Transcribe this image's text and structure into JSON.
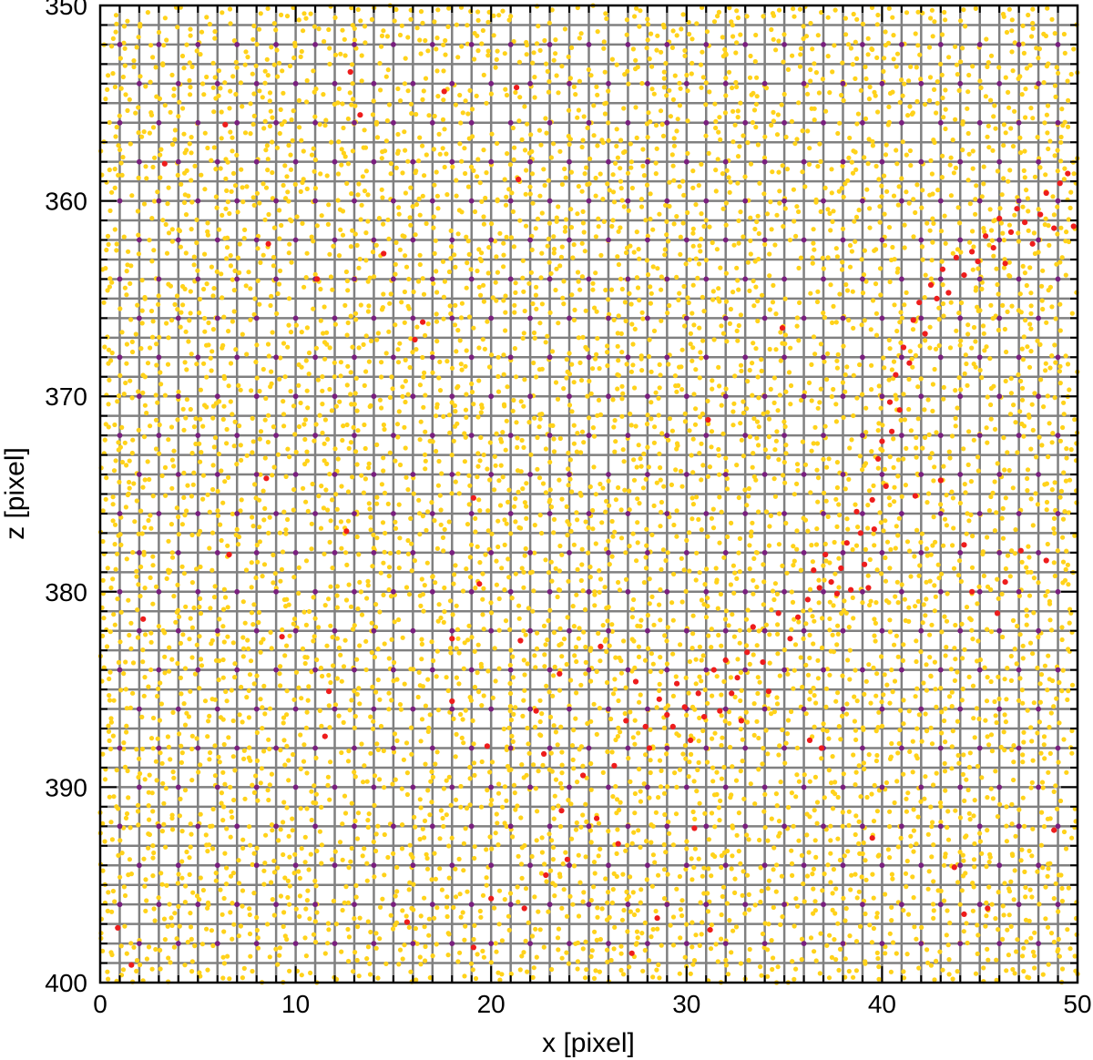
{
  "chart_data": {
    "type": "scatter",
    "title": "",
    "xlabel": "x [pixel]",
    "ylabel": "z [pixel]",
    "xlim": [
      0,
      50
    ],
    "ylim": [
      350,
      400
    ],
    "y_inverted": true,
    "grid": true,
    "grid_spacing": 1,
    "x_ticks": [
      0,
      10,
      20,
      30,
      40,
      50
    ],
    "y_ticks": [
      350,
      360,
      370,
      380,
      390,
      400
    ],
    "colors": {
      "grid": "#808080",
      "axes": "#000000",
      "yellow_points": "#ffd21a",
      "purple_points": "#7a1f7f",
      "red_points": "#ee1c1c"
    },
    "series": [
      {
        "color": "#7a1f7f",
        "description_from_image": "lattice of points at regular 2-pixel spacing with row offsets",
        "lattice": {
          "x_start": 1,
          "x_step": 2,
          "z_start": 352,
          "z_step": 2,
          "row_shift": 1
        }
      },
      {
        "color": "#ee1c1c",
        "points": [
          [
            0.9,
            397.2
          ],
          [
            1.6,
            399.1
          ],
          [
            2.2,
            381.4
          ],
          [
            3.3,
            358.1
          ],
          [
            6.4,
            356.1
          ],
          [
            6.6,
            378.1
          ],
          [
            8.5,
            374.2
          ],
          [
            8.6,
            362.2
          ],
          [
            9.3,
            382.3
          ],
          [
            11.1,
            364.0
          ],
          [
            11.7,
            385.1
          ],
          [
            11.5,
            387.4
          ],
          [
            12.6,
            376.9
          ],
          [
            12.8,
            353.4
          ],
          [
            13.3,
            355.6
          ],
          [
            14.5,
            362.7
          ],
          [
            16.1,
            367.1
          ],
          [
            16.5,
            366.2
          ],
          [
            17.6,
            354.4
          ],
          [
            18.0,
            382.4
          ],
          [
            18.0,
            385.6
          ],
          [
            19.1,
            375.2
          ],
          [
            19.4,
            379.6
          ],
          [
            19.8,
            387.9
          ],
          [
            21.3,
            354.2
          ],
          [
            21.4,
            358.9
          ],
          [
            21.5,
            382.5
          ],
          [
            22.3,
            386.1
          ],
          [
            22.7,
            388.3
          ],
          [
            23.5,
            384.2
          ],
          [
            23.6,
            391.2
          ],
          [
            23.9,
            393.7
          ],
          [
            24.7,
            389.4
          ],
          [
            25.4,
            391.6
          ],
          [
            25.6,
            382.8
          ],
          [
            26.3,
            388.9
          ],
          [
            26.5,
            392.9
          ],
          [
            26.9,
            386.6
          ],
          [
            27.4,
            384.6
          ],
          [
            27.9,
            386.9
          ],
          [
            28.1,
            388.0
          ],
          [
            28.6,
            385.5
          ],
          [
            29.0,
            386.3
          ],
          [
            29.3,
            386.9
          ],
          [
            29.5,
            384.7
          ],
          [
            29.9,
            385.9
          ],
          [
            30.2,
            387.6
          ],
          [
            30.6,
            385.2
          ],
          [
            30.9,
            386.4
          ],
          [
            31.1,
            371.2
          ],
          [
            31.4,
            384.0
          ],
          [
            31.7,
            386.1
          ],
          [
            32.0,
            383.5
          ],
          [
            32.3,
            385.2
          ],
          [
            32.6,
            384.4
          ],
          [
            32.8,
            386.6
          ],
          [
            33.1,
            383.1
          ],
          [
            33.4,
            381.8
          ],
          [
            33.9,
            383.6
          ],
          [
            34.2,
            385.1
          ],
          [
            34.7,
            381.1
          ],
          [
            34.9,
            366.5
          ],
          [
            35.3,
            382.4
          ],
          [
            35.7,
            381.3
          ],
          [
            36.2,
            380.4
          ],
          [
            36.5,
            378.9
          ],
          [
            36.8,
            379.8
          ],
          [
            37.1,
            378.1
          ],
          [
            37.4,
            379.5
          ],
          [
            37.7,
            380.1
          ],
          [
            37.9,
            378.8
          ],
          [
            38.2,
            377.5
          ],
          [
            38.4,
            379.9
          ],
          [
            38.7,
            375.9
          ],
          [
            38.9,
            377.0
          ],
          [
            39.1,
            378.6
          ],
          [
            39.3,
            379.8
          ],
          [
            39.5,
            375.3
          ],
          [
            39.6,
            376.8
          ],
          [
            39.8,
            373.2
          ],
          [
            40.0,
            372.3
          ],
          [
            40.2,
            374.6
          ],
          [
            40.4,
            370.3
          ],
          [
            40.5,
            371.8
          ],
          [
            40.7,
            368.9
          ],
          [
            40.9,
            370.7
          ],
          [
            41.1,
            367.5
          ],
          [
            41.4,
            368.3
          ],
          [
            41.6,
            366.1
          ],
          [
            41.9,
            365.2
          ],
          [
            42.2,
            366.8
          ],
          [
            42.5,
            364.3
          ],
          [
            42.8,
            365.0
          ],
          [
            43.1,
            363.5
          ],
          [
            43.4,
            364.7
          ],
          [
            43.8,
            362.9
          ],
          [
            44.2,
            363.8
          ],
          [
            44.6,
            362.6
          ],
          [
            44.9,
            363.1
          ],
          [
            45.3,
            361.8
          ],
          [
            45.7,
            362.4
          ],
          [
            46.0,
            360.9
          ],
          [
            46.3,
            363.2
          ],
          [
            46.6,
            361.6
          ],
          [
            46.9,
            360.4
          ],
          [
            47.3,
            361.1
          ],
          [
            47.7,
            362.2
          ],
          [
            48.1,
            360.7
          ],
          [
            48.4,
            359.6
          ],
          [
            48.8,
            361.4
          ],
          [
            49.1,
            359.1
          ],
          [
            49.5,
            358.6
          ],
          [
            49.8,
            361.3
          ],
          [
            41.7,
            375.1
          ],
          [
            43.0,
            374.3
          ],
          [
            44.2,
            377.6
          ],
          [
            44.6,
            380.0
          ],
          [
            45.9,
            381.1
          ],
          [
            46.3,
            379.5
          ],
          [
            47.1,
            377.9
          ],
          [
            48.4,
            378.4
          ],
          [
            48.8,
            392.2
          ],
          [
            45.4,
            396.2
          ],
          [
            44.2,
            396.5
          ],
          [
            43.7,
            394.1
          ],
          [
            39.5,
            392.6
          ],
          [
            36.9,
            388.0
          ],
          [
            36.3,
            387.6
          ],
          [
            30.4,
            392.1
          ],
          [
            31.2,
            397.3
          ],
          [
            28.5,
            396.7
          ],
          [
            27.2,
            398.5
          ],
          [
            20.0,
            395.7
          ],
          [
            21.7,
            396.2
          ],
          [
            22.8,
            394.5
          ],
          [
            15.7,
            396.9
          ],
          [
            19.1,
            398.2
          ]
        ]
      }
    ]
  }
}
